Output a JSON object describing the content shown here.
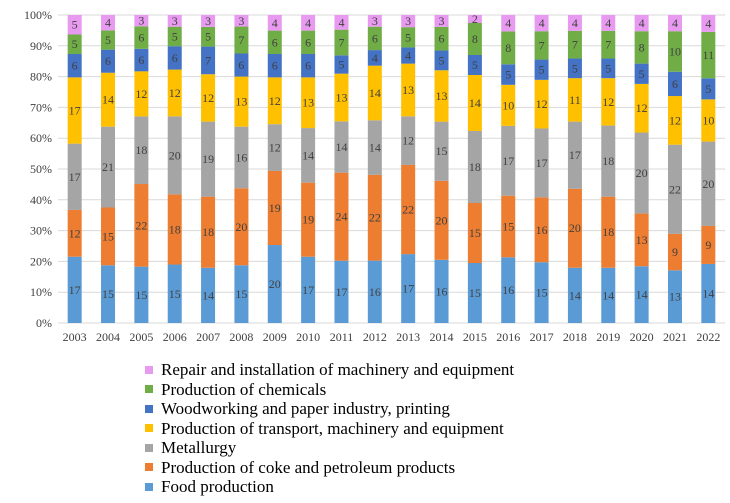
{
  "chart_data": {
    "type": "bar",
    "stacked": "percent",
    "title": "",
    "xlabel": "",
    "ylabel": "",
    "ylim": [
      0,
      100
    ],
    "yticks": [
      "0%",
      "10%",
      "20%",
      "30%",
      "40%",
      "50%",
      "60%",
      "70%",
      "80%",
      "90%",
      "100%"
    ],
    "grid": true,
    "legend_position": "bottom",
    "categories": [
      "2003",
      "2004",
      "2005",
      "2006",
      "2007",
      "2008",
      "2009",
      "2010",
      "2011",
      "2012",
      "2013",
      "2014",
      "2015",
      "2016",
      "2017",
      "2018",
      "2019",
      "2020",
      "2021",
      "2022"
    ],
    "series": [
      {
        "name": "Food production",
        "color": "#5B9BD5",
        "values": [
          17,
          15,
          15,
          15,
          14,
          15,
          20,
          17,
          17,
          16,
          17,
          16,
          15,
          16,
          15,
          14,
          14,
          14,
          13,
          14
        ]
      },
      {
        "name": "Production of coke and petroleum products",
        "color": "#ED7D31",
        "values": [
          12,
          15,
          22,
          18,
          18,
          20,
          19,
          19,
          24,
          22,
          22,
          20,
          15,
          15,
          16,
          20,
          18,
          13,
          9,
          9
        ]
      },
      {
        "name": "Metallurgy",
        "color": "#A5A5A5",
        "values": [
          17,
          21,
          18,
          20,
          19,
          16,
          12,
          14,
          14,
          14,
          12,
          15,
          18,
          17,
          17,
          17,
          18,
          20,
          22,
          20
        ]
      },
      {
        "name": "Production of transport, machinery and equipment",
        "color": "#FFC000",
        "values": [
          17,
          14,
          12,
          12,
          12,
          13,
          12,
          13,
          13,
          14,
          13,
          13,
          14,
          10,
          12,
          11,
          12,
          12,
          12,
          10
        ]
      },
      {
        "name": "Woodworking and paper industry, printing",
        "color": "#4472C4",
        "values": [
          6,
          6,
          6,
          6,
          7,
          6,
          6,
          6,
          5,
          4,
          4,
          5,
          5,
          5,
          5,
          5,
          5,
          5,
          6,
          5
        ]
      },
      {
        "name": "Production of chemicals",
        "color": "#70AD47",
        "values": [
          5,
          5,
          6,
          5,
          5,
          7,
          6,
          6,
          7,
          6,
          5,
          6,
          8,
          8,
          7,
          7,
          7,
          8,
          10,
          11
        ]
      },
      {
        "name": "Repair and installation of machinery and equipment",
        "color": "#E79AF0",
        "values": [
          5,
          4,
          3,
          3,
          3,
          3,
          4,
          4,
          4,
          3,
          3,
          3,
          2,
          4,
          4,
          4,
          4,
          4,
          4,
          4
        ]
      }
    ]
  },
  "legend": [
    {
      "label": "Repair and installation of machinery and equipment",
      "color": "#E79AF0"
    },
    {
      "label": "Production of chemicals",
      "color": "#70AD47"
    },
    {
      "label": "Woodworking and paper industry, printing",
      "color": "#4472C4"
    },
    {
      "label": "Production of transport, machinery and equipment",
      "color": "#FFC000"
    },
    {
      "label": "Metallurgy",
      "color": "#A5A5A5"
    },
    {
      "label": "Production of coke and petroleum products",
      "color": "#ED7D31"
    },
    {
      "label": "Food production",
      "color": "#5B9BD5"
    }
  ]
}
